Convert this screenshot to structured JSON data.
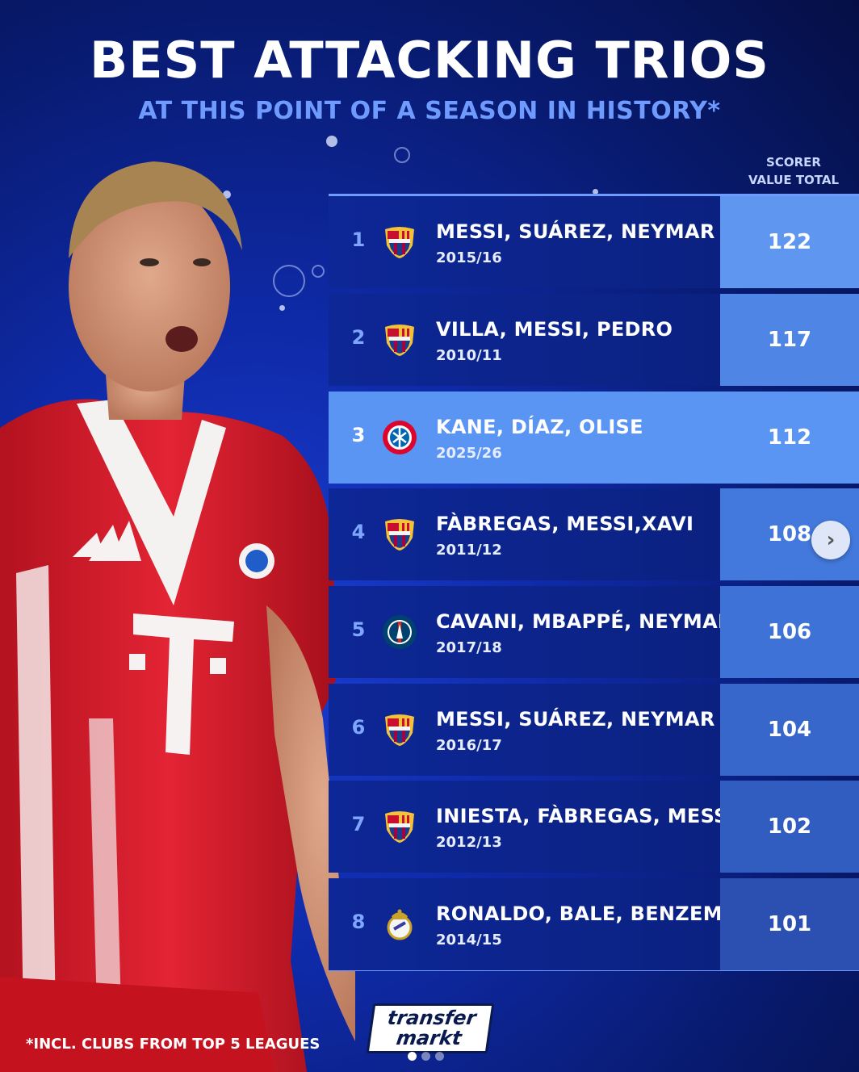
{
  "header": {
    "title": "BEST ATTACKING TRIOS",
    "subtitle": "AT THIS POINT OF A SEASON IN HISTORY*"
  },
  "table": {
    "column_header_line1": "SCORER",
    "column_header_line2": "VALUE TOTAL",
    "rows": [
      {
        "rank": "1",
        "club_icon": "fc-barcelona-crest-icon",
        "names": "MESSI, SUÁREZ, NEYMAR",
        "season": "2015/16",
        "value": "122",
        "value_bg": "#5f97f0"
      },
      {
        "rank": "2",
        "club_icon": "fc-barcelona-crest-icon",
        "names": "VILLA, MESSI, PEDRO",
        "season": "2010/11",
        "value": "117",
        "value_bg": "#4f86e6"
      },
      {
        "rank": "3",
        "club_icon": "fc-bayern-crest-icon",
        "names": "KANE, DÍAZ, OLISE",
        "season": "2025/26",
        "value": "112",
        "value_bg": "#5b95f3"
      },
      {
        "rank": "4",
        "club_icon": "fc-barcelona-crest-icon",
        "names": "FÀBREGAS, MESSI,XAVI",
        "season": "2011/12",
        "value": "108",
        "value_bg": "#4379dc"
      },
      {
        "rank": "5",
        "club_icon": "psg-crest-icon",
        "names": "CAVANI, MBAPPÉ, NEYMAR",
        "season": "2017/18",
        "value": "106",
        "value_bg": "#3e72d6"
      },
      {
        "rank": "6",
        "club_icon": "fc-barcelona-crest-icon",
        "names": "MESSI, SUÁREZ, NEYMAR",
        "season": "2016/17",
        "value": "104",
        "value_bg": "#3867cc"
      },
      {
        "rank": "7",
        "club_icon": "fc-barcelona-crest-icon",
        "names": "INIESTA, FÀBREGAS, MESSI",
        "season": "2012/13",
        "value": "102",
        "value_bg": "#315cc0"
      },
      {
        "rank": "8",
        "club_icon": "real-madrid-crest-icon",
        "names": "RONALDO, BALE, BENZEMA",
        "season": "2014/15",
        "value": "101",
        "value_bg": "#2b50b2"
      }
    ]
  },
  "footnote": "*INCL. CLUBS FROM TOP 5 LEAGUES",
  "logo": {
    "line1": "transfer",
    "line2": "markt"
  },
  "carousel": {
    "pages": 3,
    "active_page": 1
  },
  "colors": {
    "accent": "#6f9bff",
    "highlight_row": "#5b95f3",
    "background": "#0f2aa8"
  }
}
